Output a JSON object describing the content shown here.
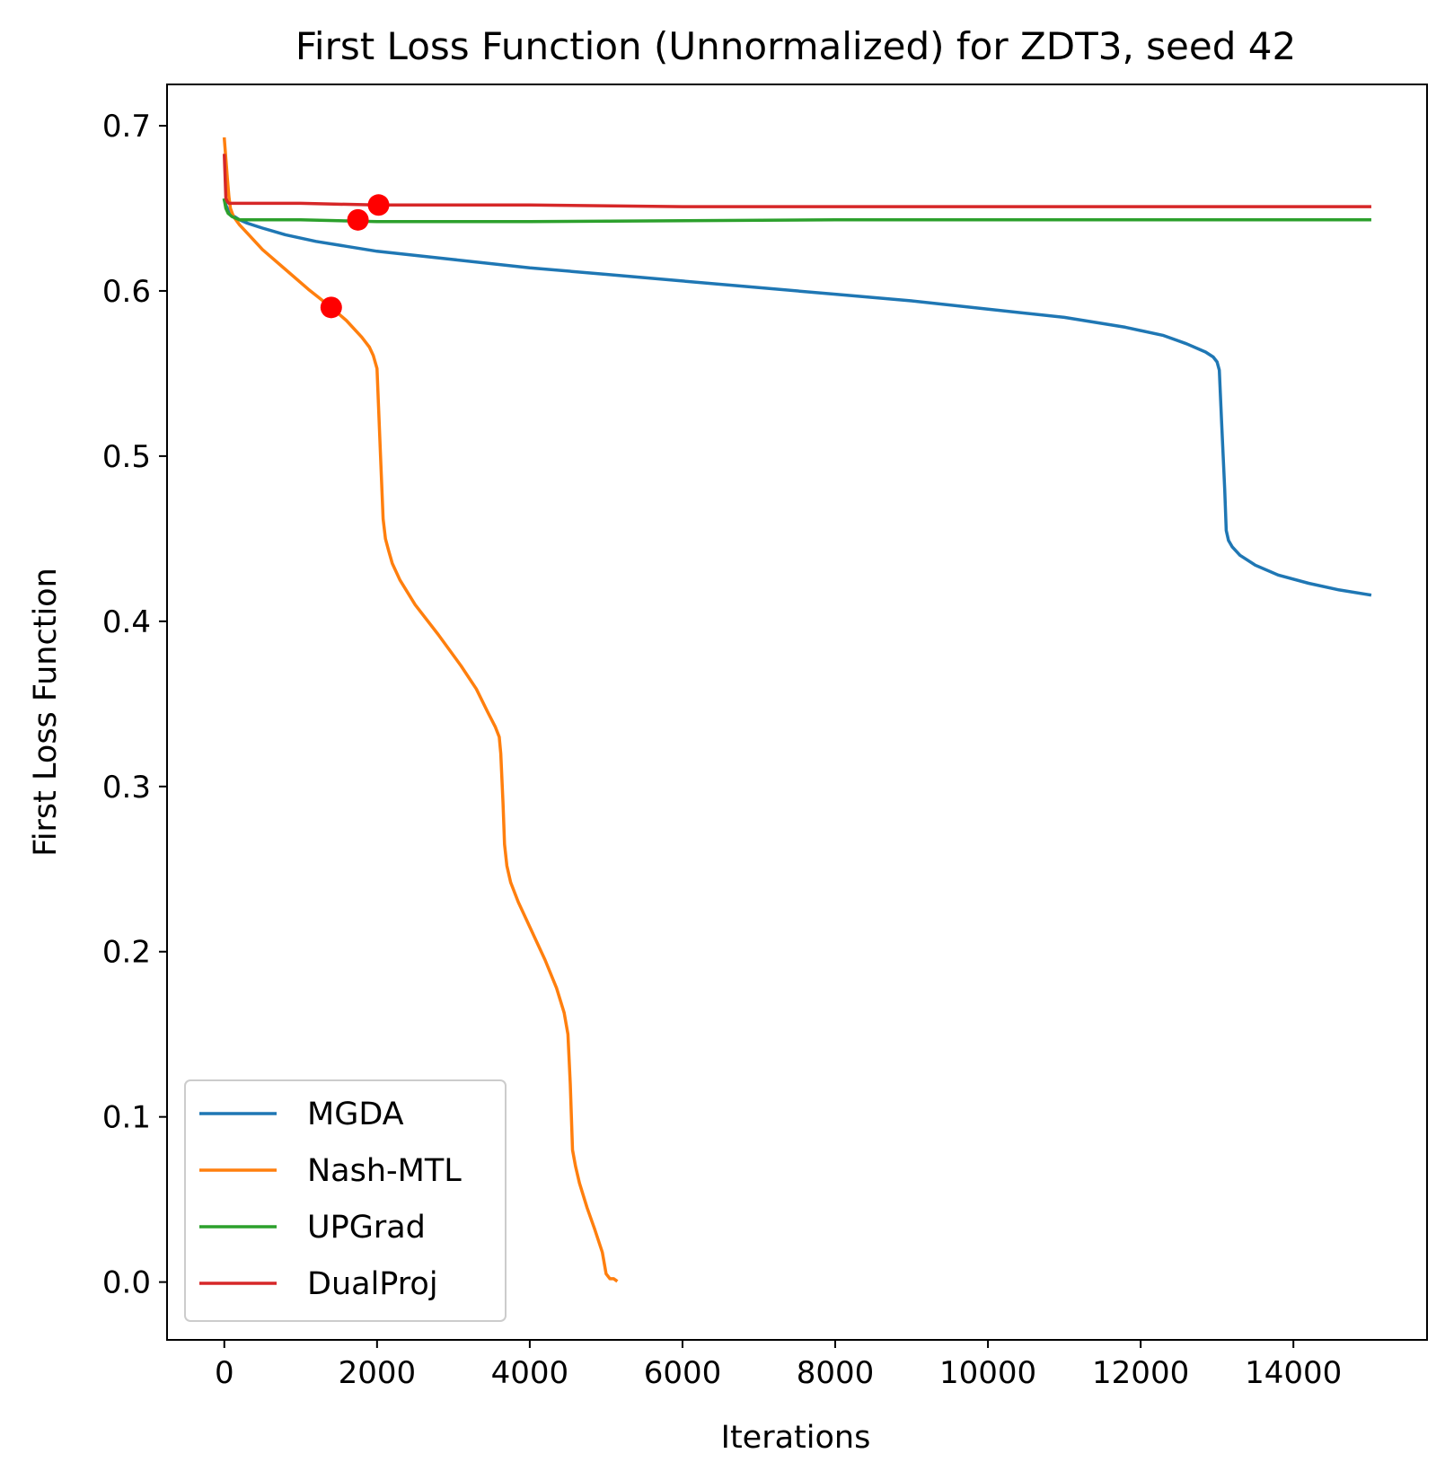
{
  "chart_data": {
    "type": "line",
    "title": "First Loss Function (Unnormalized) for ZDT3, seed 42",
    "xlabel": "Iterations",
    "ylabel": "First Loss Function",
    "xlim": [
      -750,
      15750
    ],
    "ylim": [
      -0.035,
      0.725
    ],
    "xticks": [
      0,
      2000,
      4000,
      6000,
      8000,
      10000,
      12000,
      14000
    ],
    "xtick_labels": [
      "0",
      "2000",
      "4000",
      "6000",
      "8000",
      "10000",
      "12000",
      "14000"
    ],
    "yticks": [
      0.0,
      0.1,
      0.2,
      0.3,
      0.4,
      0.5,
      0.6,
      0.7
    ],
    "ytick_labels": [
      "0.0",
      "0.1",
      "0.2",
      "0.3",
      "0.4",
      "0.5",
      "0.6",
      "0.7"
    ],
    "grid": false,
    "legend_position": "lower-left",
    "series": [
      {
        "name": "MGDA",
        "color": "#1f77b4",
        "x": [
          0,
          20,
          50,
          100,
          200,
          300,
          500,
          800,
          1200,
          1600,
          2000,
          3000,
          4000,
          5000,
          6000,
          7000,
          8000,
          9000,
          10000,
          11000,
          11800,
          12300,
          12600,
          12850,
          12950,
          13000,
          13030,
          13060,
          13100,
          13120,
          13150,
          13200,
          13300,
          13500,
          13800,
          14200,
          14600,
          15000
        ],
        "y": [
          0.655,
          0.652,
          0.649,
          0.646,
          0.643,
          0.641,
          0.638,
          0.634,
          0.63,
          0.627,
          0.624,
          0.619,
          0.614,
          0.61,
          0.606,
          0.602,
          0.598,
          0.594,
          0.589,
          0.584,
          0.578,
          0.573,
          0.568,
          0.563,
          0.56,
          0.557,
          0.552,
          0.52,
          0.48,
          0.455,
          0.449,
          0.445,
          0.44,
          0.434,
          0.428,
          0.423,
          0.419,
          0.416
        ]
      },
      {
        "name": "Nash-MTL",
        "color": "#ff7f0e",
        "x": [
          0,
          20,
          40,
          60,
          80,
          120,
          200,
          300,
          500,
          800,
          1100,
          1400,
          1600,
          1800,
          1900,
          1950,
          2000,
          2020,
          2050,
          2080,
          2110,
          2150,
          2200,
          2300,
          2500,
          2800,
          3100,
          3300,
          3450,
          3550,
          3600,
          3620,
          3650,
          3670,
          3700,
          3750,
          3850,
          4000,
          4200,
          4350,
          4450,
          4500,
          4530,
          4560,
          4600,
          4650,
          4750,
          4850,
          4950,
          5000,
          5050,
          5100,
          5130
        ],
        "y": [
          0.692,
          0.68,
          0.668,
          0.657,
          0.65,
          0.645,
          0.64,
          0.635,
          0.625,
          0.613,
          0.601,
          0.59,
          0.582,
          0.572,
          0.566,
          0.561,
          0.553,
          0.53,
          0.495,
          0.462,
          0.45,
          0.443,
          0.435,
          0.425,
          0.41,
          0.392,
          0.373,
          0.359,
          0.345,
          0.336,
          0.33,
          0.32,
          0.29,
          0.265,
          0.252,
          0.242,
          0.23,
          0.215,
          0.195,
          0.178,
          0.163,
          0.15,
          0.12,
          0.08,
          0.07,
          0.06,
          0.045,
          0.032,
          0.018,
          0.005,
          0.002,
          0.002,
          0.001
        ]
      },
      {
        "name": "UPGrad",
        "color": "#2ca02c",
        "x": [
          0,
          20,
          50,
          100,
          150,
          200,
          300,
          500,
          1000,
          2000,
          4000,
          8000,
          15000
        ],
        "y": [
          0.655,
          0.65,
          0.647,
          0.645,
          0.644,
          0.643,
          0.643,
          0.643,
          0.643,
          0.642,
          0.642,
          0.643,
          0.643
        ],
        "marker": {
          "x": 1750,
          "y": 0.643
        }
      },
      {
        "name": "DualProj",
        "color": "#d62728",
        "x": [
          0,
          10,
          20,
          40,
          60,
          80,
          150,
          500,
          1000,
          2000,
          4000,
          6000,
          8000,
          10000,
          12000,
          15000
        ],
        "y": [
          0.682,
          0.67,
          0.656,
          0.654,
          0.653,
          0.653,
          0.653,
          0.653,
          0.653,
          0.652,
          0.652,
          0.651,
          0.651,
          0.651,
          0.651,
          0.651
        ],
        "marker": {
          "x": 2020,
          "y": 0.652
        }
      }
    ],
    "nash_marker": {
      "x": 1400,
      "y": 0.59
    },
    "marker_color": "#ff0000"
  }
}
